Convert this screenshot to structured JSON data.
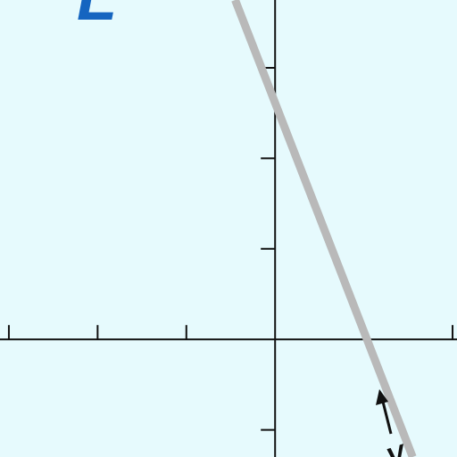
{
  "figure": {
    "background": "#e6fafd",
    "axis_color": "#111111",
    "line_color": "#b9b9b9",
    "label_color": "#1565c0",
    "corner_label": "L",
    "arrow_label": "V"
  },
  "chart_data": {
    "type": "line",
    "xlim": [
      -3.1,
      2.05
    ],
    "ylim": [
      -1.3,
      3.75
    ],
    "x_ticks": [
      -3,
      -2,
      -1,
      1,
      2
    ],
    "y_ticks": [
      -1,
      1,
      2,
      3
    ],
    "grid": false,
    "series": [
      {
        "points": [
          [
            -0.45,
            3.75
          ],
          [
            1.55,
            -1.3
          ]
        ]
      }
    ]
  }
}
